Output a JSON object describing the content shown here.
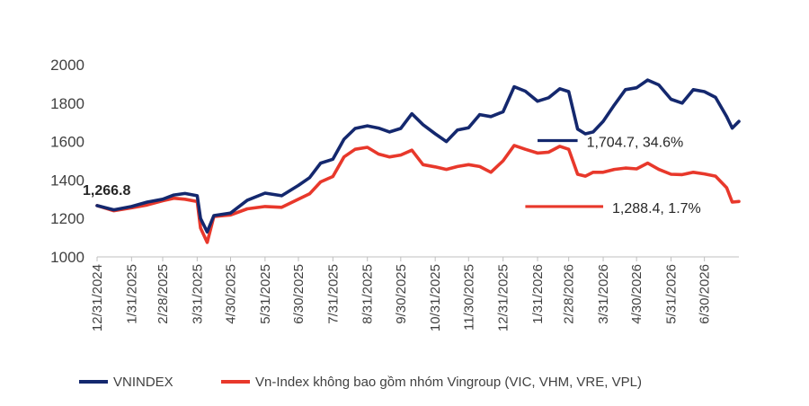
{
  "chart_data": {
    "type": "line",
    "ylim": [
      1000,
      2000
    ],
    "yticks": [
      "1000",
      "1200",
      "1400",
      "1600",
      "1800",
      "2000"
    ],
    "x_tick_labels": [
      "12/31/2024",
      "1/31/2025",
      "2/28/2025",
      "3/31/2025",
      "4/30/2025",
      "5/31/2025",
      "6/30/2025",
      "7/31/2025",
      "8/31/2025",
      "9/30/2025",
      "10/31/2025",
      "11/30/2025",
      "12/31/2025",
      "1/31/2026",
      "2/28/2026",
      "3/31/2026",
      "4/30/2026",
      "5/31/2026",
      "6/30/2026"
    ],
    "x_range": [
      "12/31/2024",
      "7/31/2026"
    ],
    "grid": false,
    "legend_position": "bottom",
    "colors": {
      "vnindex": "#14286e",
      "ex_vingroup": "#e8382b",
      "axis": "#bfbfbf",
      "text": "#404040"
    },
    "series": [
      {
        "key": "vnindex",
        "name": "VNINDEX",
        "points": [
          [
            "12/31/2024",
            1266.8
          ],
          [
            "1/15/2025",
            1245
          ],
          [
            "1/31/2025",
            1262
          ],
          [
            "2/14/2025",
            1285
          ],
          [
            "2/28/2025",
            1300
          ],
          [
            "3/10/2025",
            1322
          ],
          [
            "3/20/2025",
            1330
          ],
          [
            "3/31/2025",
            1318
          ],
          [
            "4/3/2025",
            1200
          ],
          [
            "4/9/2025",
            1130
          ],
          [
            "4/15/2025",
            1215
          ],
          [
            "4/30/2025",
            1228
          ],
          [
            "5/15/2025",
            1295
          ],
          [
            "5/31/2025",
            1332
          ],
          [
            "6/15/2025",
            1318
          ],
          [
            "6/30/2025",
            1372
          ],
          [
            "7/10/2025",
            1412
          ],
          [
            "7/20/2025",
            1488
          ],
          [
            "7/31/2025",
            1508
          ],
          [
            "8/10/2025",
            1612
          ],
          [
            "8/20/2025",
            1668
          ],
          [
            "8/31/2025",
            1682
          ],
          [
            "9/10/2025",
            1670
          ],
          [
            "9/20/2025",
            1650
          ],
          [
            "9/30/2025",
            1668
          ],
          [
            "10/10/2025",
            1745
          ],
          [
            "10/20/2025",
            1688
          ],
          [
            "10/31/2025",
            1640
          ],
          [
            "11/10/2025",
            1600
          ],
          [
            "11/20/2025",
            1660
          ],
          [
            "11/30/2025",
            1672
          ],
          [
            "12/10/2025",
            1740
          ],
          [
            "12/20/2025",
            1730
          ],
          [
            "12/31/2025",
            1755
          ],
          [
            "1/10/2026",
            1885
          ],
          [
            "1/20/2026",
            1862
          ],
          [
            "1/31/2026",
            1810
          ],
          [
            "2/10/2026",
            1828
          ],
          [
            "2/20/2026",
            1875
          ],
          [
            "2/28/2026",
            1860
          ],
          [
            "3/8/2026",
            1665
          ],
          [
            "3/15/2026",
            1640
          ],
          [
            "3/22/2026",
            1650
          ],
          [
            "3/31/2026",
            1705
          ],
          [
            "4/10/2026",
            1790
          ],
          [
            "4/20/2026",
            1870
          ],
          [
            "4/30/2026",
            1880
          ],
          [
            "5/10/2026",
            1920
          ],
          [
            "5/20/2026",
            1895
          ],
          [
            "5/31/2026",
            1820
          ],
          [
            "6/10/2026",
            1800
          ],
          [
            "6/20/2026",
            1870
          ],
          [
            "6/30/2026",
            1860
          ],
          [
            "7/10/2026",
            1830
          ],
          [
            "7/20/2026",
            1730
          ],
          [
            "7/25/2026",
            1670
          ],
          [
            "7/31/2026",
            1704.7
          ]
        ]
      },
      {
        "key": "ex_vingroup",
        "name": "Vn-Index không bao gồm nhóm Vingroup (VIC, VHM, VRE, VPL)",
        "points": [
          [
            "12/31/2024",
            1266.8
          ],
          [
            "1/15/2025",
            1240
          ],
          [
            "1/31/2025",
            1255
          ],
          [
            "2/14/2025",
            1270
          ],
          [
            "2/28/2025",
            1292
          ],
          [
            "3/10/2025",
            1305
          ],
          [
            "3/20/2025",
            1300
          ],
          [
            "3/31/2025",
            1288
          ],
          [
            "4/3/2025",
            1150
          ],
          [
            "4/9/2025",
            1075
          ],
          [
            "4/15/2025",
            1210
          ],
          [
            "4/30/2025",
            1218
          ],
          [
            "5/15/2025",
            1250
          ],
          [
            "5/31/2025",
            1262
          ],
          [
            "6/15/2025",
            1258
          ],
          [
            "6/30/2025",
            1300
          ],
          [
            "7/10/2025",
            1328
          ],
          [
            "7/20/2025",
            1390
          ],
          [
            "7/31/2025",
            1418
          ],
          [
            "8/10/2025",
            1520
          ],
          [
            "8/20/2025",
            1560
          ],
          [
            "8/31/2025",
            1570
          ],
          [
            "9/10/2025",
            1535
          ],
          [
            "9/20/2025",
            1520
          ],
          [
            "9/30/2025",
            1530
          ],
          [
            "10/10/2025",
            1555
          ],
          [
            "10/20/2025",
            1480
          ],
          [
            "10/31/2025",
            1468
          ],
          [
            "11/10/2025",
            1455
          ],
          [
            "11/20/2025",
            1470
          ],
          [
            "11/30/2025",
            1480
          ],
          [
            "12/10/2025",
            1470
          ],
          [
            "12/20/2025",
            1440
          ],
          [
            "12/31/2025",
            1500
          ],
          [
            "1/10/2026",
            1580
          ],
          [
            "1/20/2026",
            1560
          ],
          [
            "1/31/2026",
            1540
          ],
          [
            "2/10/2026",
            1545
          ],
          [
            "2/20/2026",
            1575
          ],
          [
            "2/28/2026",
            1560
          ],
          [
            "3/8/2026",
            1430
          ],
          [
            "3/15/2026",
            1420
          ],
          [
            "3/22/2026",
            1440
          ],
          [
            "3/31/2026",
            1440
          ],
          [
            "4/10/2026",
            1455
          ],
          [
            "4/20/2026",
            1462
          ],
          [
            "4/30/2026",
            1458
          ],
          [
            "5/10/2026",
            1488
          ],
          [
            "5/20/2026",
            1455
          ],
          [
            "5/31/2026",
            1430
          ],
          [
            "6/10/2026",
            1428
          ],
          [
            "6/20/2026",
            1440
          ],
          [
            "6/30/2026",
            1432
          ],
          [
            "7/10/2026",
            1420
          ],
          [
            "7/20/2026",
            1360
          ],
          [
            "7/25/2026",
            1285
          ],
          [
            "7/31/2026",
            1288.4
          ]
        ]
      }
    ],
    "annotations": [
      {
        "key": "start",
        "text": "1,266.8",
        "bold": true,
        "at": [
          "12/31/2024",
          1266.8
        ]
      },
      {
        "key": "vnindex_end",
        "text": "1,704.7, 34.6%",
        "bold": false,
        "series": "vnindex",
        "leader_from": [
          "1/31/2026",
          1605
        ],
        "leader_to": [
          "3/8/2026",
          1605
        ]
      },
      {
        "key": "exvg_end",
        "text": "1,288.4, 1.7%",
        "bold": false,
        "series": "ex_vingroup",
        "leader_from": [
          "1/20/2026",
          1262
        ],
        "leader_to": [
          "3/31/2026",
          1262
        ]
      }
    ]
  }
}
